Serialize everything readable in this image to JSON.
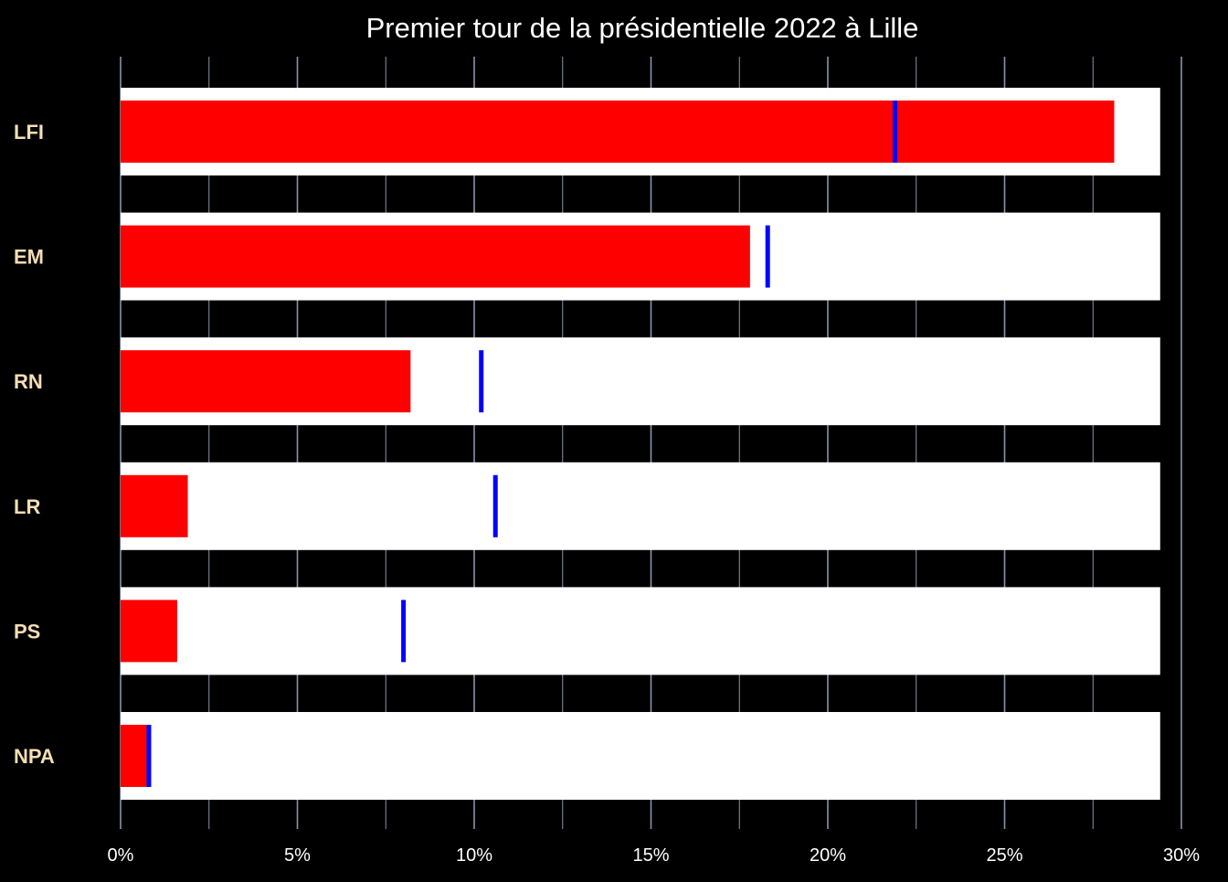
{
  "colors": {
    "background": "#000000",
    "band": "#ffffff",
    "bar": "#ff0000",
    "marker": "#0000ff",
    "grid": "#8a93a8",
    "label": "#f5deb3",
    "text": "#ffffff"
  },
  "chart_data": {
    "type": "bar",
    "orientation": "horizontal",
    "title": "Premier tour de la présidentielle 2022 à Lille",
    "xlabel": "",
    "ylabel": "",
    "xlim": [
      0,
      30
    ],
    "x_ticks": [
      0,
      5,
      10,
      15,
      20,
      25,
      30
    ],
    "x_tick_labels": [
      "0%",
      "5%",
      "10%",
      "15%",
      "20%",
      "25%",
      "30%"
    ],
    "grid": true,
    "categories": [
      "LFI",
      "EM",
      "RN",
      "LR",
      "PS",
      "NPA"
    ],
    "series": [
      {
        "values": [
          28.1,
          17.8,
          8.2,
          1.9,
          1.6,
          0.8
        ]
      },
      {
        "type": "marker",
        "values": [
          21.9,
          18.3,
          10.2,
          10.6,
          8.0,
          0.8
        ]
      }
    ],
    "band_max": 29.4
  }
}
